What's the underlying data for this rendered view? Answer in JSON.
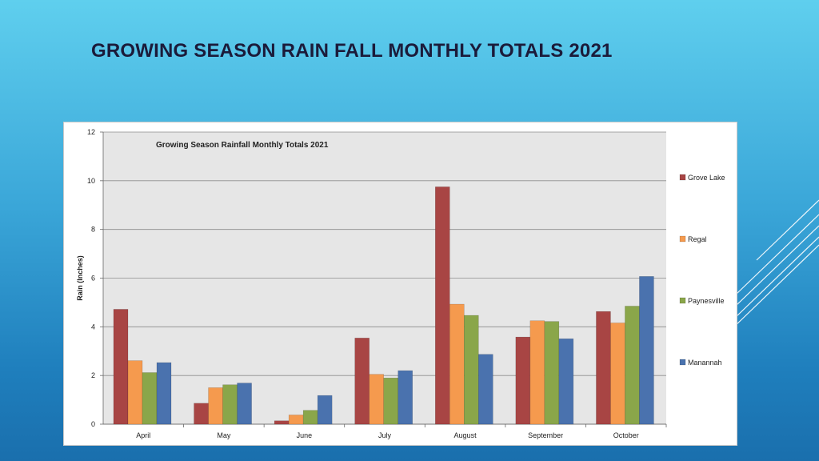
{
  "slide": {
    "title": "GROWING SEASON RAIN FALL MONTHLY TOTALS 2021"
  },
  "colors": {
    "background_top": "#5fcfee",
    "background_bottom": "#1a6fad",
    "plot_area": "#e6e6e6"
  },
  "chart_data": {
    "type": "bar",
    "title": "Growing Season Rainfall Monthly Totals 2021",
    "xlabel": "",
    "ylabel": "Rain (Inches)",
    "ylim": [
      0,
      12
    ],
    "yticks": [
      0,
      2,
      4,
      6,
      8,
      10,
      12
    ],
    "grid": true,
    "legend_position": "right",
    "categories": [
      "April",
      "May",
      "June",
      "July",
      "August",
      "September",
      "October"
    ],
    "series": [
      {
        "name": "Grove Lake",
        "color": "#a84544",
        "values": [
          4.72,
          0.86,
          0.14,
          3.54,
          9.75,
          3.58,
          4.63
        ]
      },
      {
        "name": "Regal",
        "color": "#f59a4e",
        "values": [
          2.61,
          1.5,
          0.38,
          2.05,
          4.93,
          4.25,
          4.16
        ]
      },
      {
        "name": "Paynesville",
        "color": "#8aa64a",
        "values": [
          2.12,
          1.62,
          0.57,
          1.9,
          4.47,
          4.22,
          4.85
        ]
      },
      {
        "name": "Manannah",
        "color": "#4a72ae",
        "values": [
          2.53,
          1.69,
          1.18,
          2.2,
          2.87,
          3.51,
          6.07
        ]
      }
    ]
  }
}
